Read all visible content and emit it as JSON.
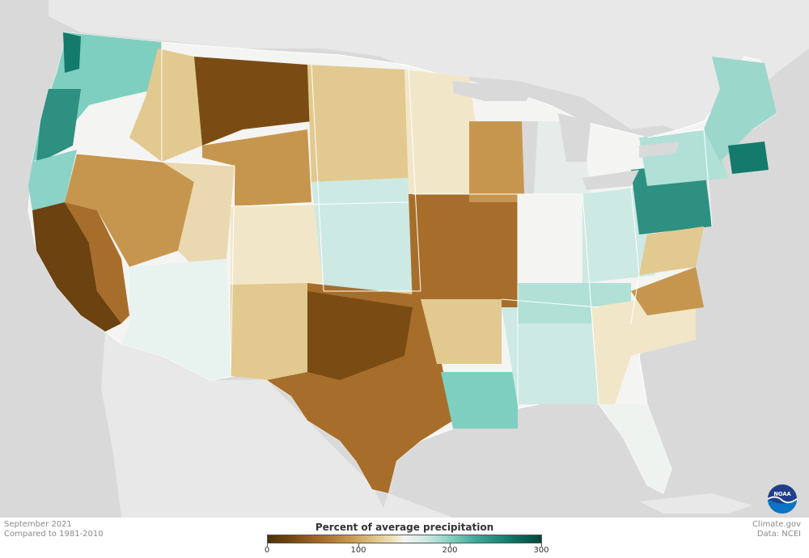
{
  "map": {
    "legend_title": "Percent of average precipitation",
    "legend_ticks": [
      "0",
      "100",
      "200",
      "300"
    ],
    "legend_tick_values": [
      0,
      100,
      200,
      300
    ],
    "legend_range": [
      0,
      300
    ],
    "colors": {
      "driest": "#4e2f08",
      "dry": "#a66e2a",
      "slightly_dry": "#e2c98f",
      "normal": "#f4f4f2",
      "slightly_wet": "#cde9e3",
      "wet": "#3fa898",
      "wettest": "#00463a",
      "land_outside": "#e6e6e6",
      "ocean": "#d9d9d9"
    }
  },
  "footer": {
    "period": "September 2021",
    "baseline": "Compared to 1981-2010",
    "source_site": "Climate.gov",
    "source_data": "Data: NCEI"
  },
  "logo": {
    "icon": "noaa-logo-icon"
  }
}
